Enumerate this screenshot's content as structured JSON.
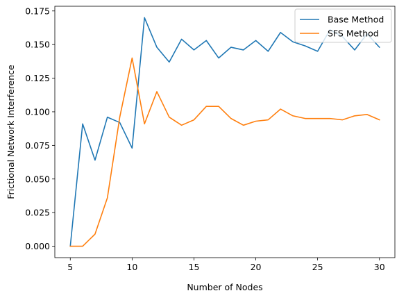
{
  "chart_data": {
    "type": "line",
    "title": "",
    "xlabel": "Number of Nodes",
    "ylabel": "Frictional Network Interference",
    "xlim": [
      3.75,
      31.25
    ],
    "ylim": [
      -0.0085,
      0.1785
    ],
    "xticks": [
      5,
      10,
      15,
      20,
      25,
      30
    ],
    "xtick_labels": [
      "5",
      "10",
      "15",
      "20",
      "25",
      "30"
    ],
    "yticks": [
      0.0,
      0.025,
      0.05,
      0.075,
      0.1,
      0.125,
      0.15,
      0.175
    ],
    "ytick_labels": [
      "0.000",
      "0.025",
      "0.050",
      "0.075",
      "0.100",
      "0.125",
      "0.150",
      "0.175"
    ],
    "grid": false,
    "legend_position": "upper right",
    "x": [
      5,
      6,
      7,
      8,
      9,
      10,
      11,
      12,
      13,
      14,
      15,
      16,
      17,
      18,
      19,
      20,
      21,
      22,
      23,
      24,
      25,
      26,
      27,
      28,
      29,
      30
    ],
    "series": [
      {
        "name": "Base Method",
        "color": "#1f77b4",
        "values": [
          0.0,
          0.091,
          0.064,
          0.096,
          0.092,
          0.073,
          0.17,
          0.148,
          0.137,
          0.154,
          0.146,
          0.153,
          0.14,
          0.148,
          0.146,
          0.153,
          0.145,
          0.159,
          0.152,
          0.149,
          0.145,
          0.161,
          0.156,
          0.146,
          0.158,
          0.148
        ]
      },
      {
        "name": "SFS Method",
        "color": "#ff7f0e",
        "values": [
          0.0,
          0.0,
          0.009,
          0.036,
          0.096,
          0.14,
          0.091,
          0.115,
          0.096,
          0.09,
          0.094,
          0.104,
          0.104,
          0.095,
          0.09,
          0.093,
          0.094,
          0.102,
          0.097,
          0.095,
          0.095,
          0.095,
          0.094,
          0.097,
          0.098,
          0.094
        ]
      }
    ]
  }
}
